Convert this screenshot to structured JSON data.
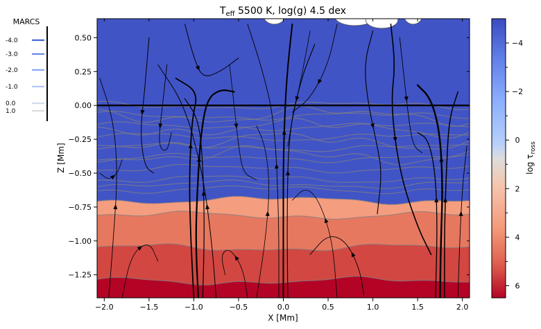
{
  "chart_data": {
    "type": "heatmap",
    "title_main": "T",
    "title_sub": "eff",
    "title_rest": " 5500 K, log(g) 4.5 dex",
    "xlabel": "X [Mm]",
    "ylabel": "Z [Mm]",
    "xlim": [
      -2.08,
      2.08
    ],
    "ylim": [
      -1.42,
      0.64
    ],
    "xticks": [
      {
        "v": -2.0,
        "label": "−2.0"
      },
      {
        "v": -1.5,
        "label": "−1.5"
      },
      {
        "v": -1.0,
        "label": "−1.0"
      },
      {
        "v": -0.5,
        "label": "−0.5"
      },
      {
        "v": 0.0,
        "label": "0.0"
      },
      {
        "v": 0.5,
        "label": "0.5"
      },
      {
        "v": 1.0,
        "label": "1.0"
      },
      {
        "v": 1.5,
        "label": "1.5"
      },
      {
        "v": 2.0,
        "label": "2.0"
      }
    ],
    "yticks": [
      {
        "v": 0.5,
        "label": "0.50"
      },
      {
        "v": 0.25,
        "label": "0.25"
      },
      {
        "v": 0.0,
        "label": "0.00"
      },
      {
        "v": -0.25,
        "label": "−0.25"
      },
      {
        "v": -0.5,
        "label": "−0.50"
      },
      {
        "v": -0.75,
        "label": "−0.75"
      },
      {
        "v": -1.0,
        "label": "−1.00"
      },
      {
        "v": -1.25,
        "label": "−1.25"
      }
    ],
    "colorbar": {
      "label_main": "log τ",
      "label_sub": "ross",
      "range": [
        -5.0,
        6.5
      ],
      "reversed": true,
      "ticks": [
        {
          "v": -4,
          "label": "−4"
        },
        {
          "v": -2,
          "label": "−2"
        },
        {
          "v": 0,
          "label": "0"
        },
        {
          "v": 2,
          "label": "2"
        },
        {
          "v": 4,
          "label": "4"
        },
        {
          "v": 6,
          "label": "6"
        }
      ],
      "colormap": "coolwarm"
    },
    "contour_levels": [
      -4.5,
      -4.0,
      -3.5,
      -3.0,
      -2.5,
      -2.0,
      -1.5,
      -1.0,
      -0.5,
      0.0,
      0.5,
      1.0,
      1.5,
      2.0,
      3.0,
      4.0,
      5.0,
      6.0
    ],
    "tau_one_height_mm": 0.0,
    "legend": {
      "title": "MARCS",
      "placement": "outside-left",
      "entries": [
        {
          "label": "-4.0",
          "color": "#4a66d9"
        },
        {
          "label": "-3.0",
          "color": "#6b87ea"
        },
        {
          "label": "-2.0",
          "color": "#8fa8f5"
        },
        {
          "label": "-1.0",
          "color": "#b3c6fb"
        },
        {
          "label": "0.0",
          "color": "#d3dcee"
        },
        {
          "label": "1.0",
          "color": "#dcdcdc"
        }
      ]
    },
    "streamlines": "velocity field (black streamlines)"
  }
}
